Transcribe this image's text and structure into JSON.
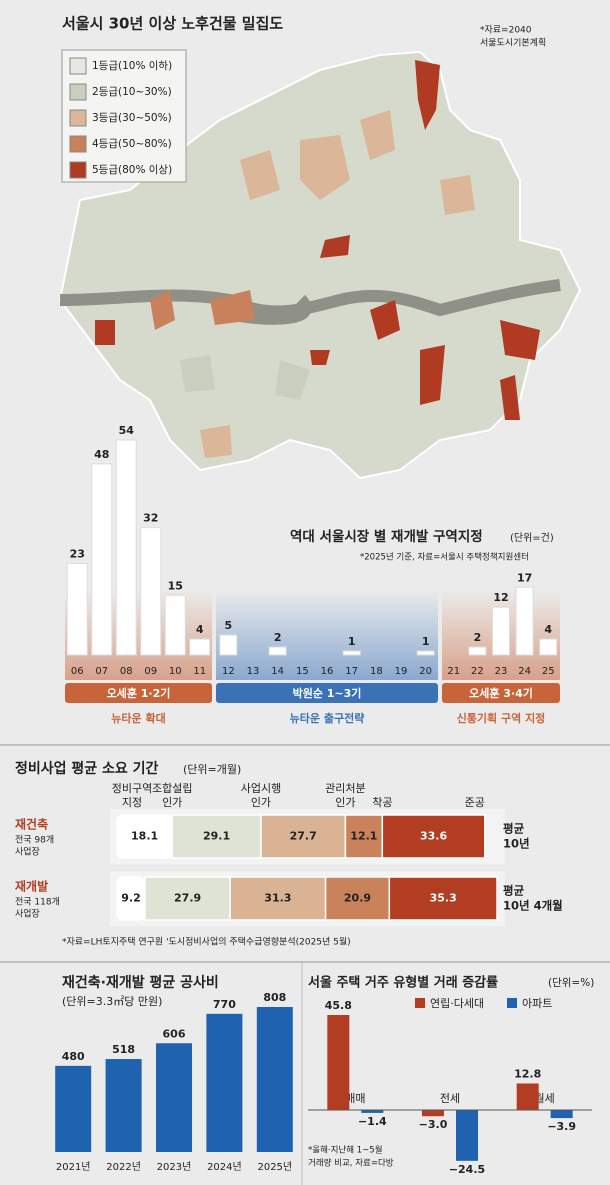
{
  "map": {
    "title": "서울시 30년 이상 노후건물 밀집도",
    "source": [
      "*자료=2040",
      "서울도시기본계획"
    ],
    "legend": [
      {
        "label": "1등급(10% 이하)",
        "color": "#e7e9e1"
      },
      {
        "label": "2등급(10~30%)",
        "color": "#c9cfbf"
      },
      {
        "label": "3등급(30~50%)",
        "color": "#dbb698"
      },
      {
        "label": "4등급(50~80%)",
        "color": "#c8815b"
      },
      {
        "label": "5등급(80% 이상)",
        "color": "#b03a22"
      }
    ]
  },
  "chart_data": [
    {
      "type": "bar",
      "title": "역대 서울시장 별 재개발 구역지정",
      "unit": "(단위=건)",
      "note": "*2025년 기준, 자료=서울시 주택정책지원센터",
      "categories": [
        "06",
        "07",
        "08",
        "09",
        "10",
        "11",
        "12",
        "13",
        "14",
        "15",
        "16",
        "17",
        "18",
        "19",
        "20",
        "21",
        "22",
        "23",
        "24",
        "25"
      ],
      "values": [
        23,
        48,
        54,
        32,
        15,
        4,
        5,
        0,
        2,
        0,
        0,
        1,
        0,
        0,
        1,
        0,
        2,
        12,
        17,
        4
      ],
      "color": "#ffffff",
      "groups": [
        {
          "name": "오세훈 1·2기",
          "policy": "뉴타운 확대",
          "color": "#c8643a"
        },
        {
          "name": "박원순 1~3기",
          "policy": "뉴타운 출구전략",
          "color": "#3a72b8"
        },
        {
          "name": "오세훈 3·4기",
          "policy": "신통기획 구역 지정",
          "color": "#c8643a"
        }
      ]
    },
    {
      "type": "stacked",
      "title": "정비사업 평균 소요 기간",
      "unit": "(단위=개월)",
      "stages": [
        [
          "정비구역",
          "지정"
        ],
        [
          "조합설립",
          "인가"
        ],
        [
          "사업시행",
          "인가"
        ],
        [
          "관리처분",
          "인가"
        ],
        [
          "착공"
        ],
        [
          "준공"
        ]
      ],
      "categories": [
        "재건축",
        "재개발"
      ],
      "category_details": [
        [
          "전국 98개",
          "사업장"
        ],
        [
          "전국 118개",
          "사업장"
        ]
      ],
      "totals": [
        [
          "평균",
          "10년"
        ],
        [
          "평균",
          "10년 4개월"
        ]
      ],
      "series": [
        {
          "color": "#ffffff",
          "values": [
            18.1,
            9.2
          ]
        },
        {
          "color": "#dfe3d6",
          "values": [
            29.1,
            27.9
          ]
        },
        {
          "color": "#d9b393",
          "values": [
            27.7,
            31.3
          ]
        },
        {
          "color": "#c98259",
          "values": [
            12.1,
            20.9
          ]
        },
        {
          "color": "#b23d22",
          "values": [
            33.6,
            35.3
          ]
        }
      ],
      "note": "*자료=LH토지주택 연구원 '도시정비사업의 주택수급영향분석(2025년 5월)"
    },
    {
      "type": "bar",
      "title": "재건축·재개발 평균 공사비",
      "unit": "(단위=3.3㎡당 만원)",
      "categories": [
        "2021년",
        "2022년",
        "2023년",
        "2024년",
        "2025년"
      ],
      "values": [
        480,
        518,
        606,
        770,
        808
      ],
      "color": "#1f62b0"
    },
    {
      "type": "bar",
      "title": "서울 주택 거주 유형별 거래 증감률",
      "unit": "(단위=%)",
      "note": [
        "*올해·지난해 1~5월",
        "거래량 비교, 자료=다방"
      ],
      "categories": [
        "매매",
        "전세",
        "월세"
      ],
      "series": [
        {
          "name": "연립·다세대",
          "color": "#b23d22",
          "values": [
            45.8,
            -3.0,
            12.8
          ],
          "value_labels": [
            "45.8",
            "−3.0",
            "12.8"
          ]
        },
        {
          "name": "아파트",
          "color": "#1f62b0",
          "values": [
            -1.4,
            -24.5,
            -3.9
          ],
          "value_labels": [
            "−1.4",
            "−24.5",
            "−3.9"
          ]
        }
      ]
    }
  ]
}
